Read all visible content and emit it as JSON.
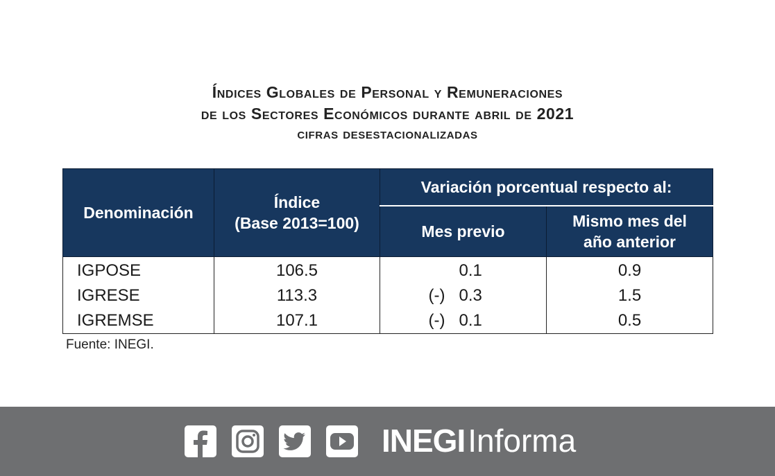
{
  "title": {
    "line1": "Índices Globales de Personal y Remuneraciones",
    "line2": "de los Sectores Económicos durante abril de 2021",
    "line3": "cifras desestacionalizadas"
  },
  "table": {
    "headers": {
      "denominacion": "Denominación",
      "indice_line1": "Índice",
      "indice_line2": "(Base 2013=100)",
      "variacion": "Variación porcentual respecto al:",
      "mes_previo": "Mes previo",
      "mismo_mes_line1": "Mismo mes del",
      "mismo_mes_line2": "año anterior"
    },
    "rows": [
      {
        "name": "IGPOSE",
        "indice": "106.5",
        "mes_previo_sign": "",
        "mes_previo": "0.1",
        "anual": "0.9"
      },
      {
        "name": "IGRESE",
        "indice": "113.3",
        "mes_previo_sign": "(-)",
        "mes_previo": "0.3",
        "anual": "1.5"
      },
      {
        "name": "IGREMSE",
        "indice": "107.1",
        "mes_previo_sign": "(-)",
        "mes_previo": "0.1",
        "anual": "0.5"
      }
    ]
  },
  "source": "Fuente: INEGI.",
  "footer": {
    "icons": [
      "facebook-icon",
      "instagram-icon",
      "twitter-icon",
      "youtube-icon"
    ],
    "brand_bold": "INEGI",
    "brand_light": "Informa",
    "background": "#6e6f71"
  },
  "colors": {
    "header_bg": "#17375e",
    "header_text": "#ffffff"
  }
}
